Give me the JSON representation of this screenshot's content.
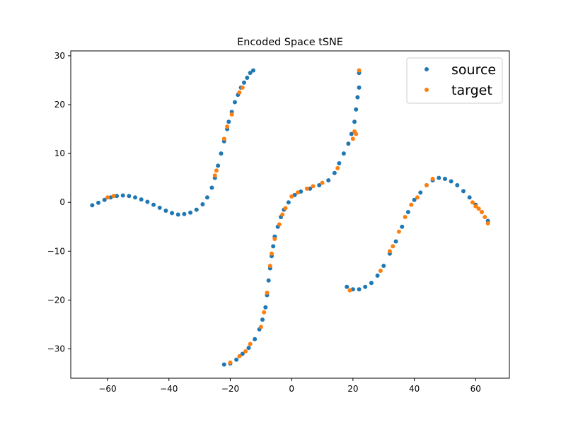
{
  "chart_data": {
    "type": "scatter",
    "title": "Encoded Space tSNE",
    "xlabel": "",
    "ylabel": "",
    "xlim": [
      -72,
      71
    ],
    "ylim": [
      -36,
      31
    ],
    "xticks": [
      -60,
      -40,
      -20,
      0,
      20,
      40,
      60
    ],
    "yticks": [
      -30,
      -20,
      -10,
      0,
      10,
      20,
      30
    ],
    "xtick_labels": [
      "−60",
      "−40",
      "−20",
      "0",
      "20",
      "40",
      "60"
    ],
    "ytick_labels": [
      "−30",
      "−20",
      "−10",
      "0",
      "10",
      "20",
      "30"
    ],
    "grid": false,
    "legend_position": "upper right",
    "series": [
      {
        "name": "source",
        "color": "#1f77b4",
        "clusters": [
          {
            "segment": "left",
            "points": [
              [
                -65,
                -0.6
              ],
              [
                -63,
                -0.1
              ],
              [
                -61,
                0.5
              ],
              [
                -59,
                1.0
              ],
              [
                -57,
                1.3
              ],
              [
                -55,
                1.4
              ],
              [
                -53,
                1.3
              ],
              [
                -51,
                1.0
              ],
              [
                -49,
                0.6
              ],
              [
                -47,
                0.1
              ],
              [
                -45,
                -0.5
              ],
              [
                -43,
                -1.1
              ],
              [
                -41,
                -1.7
              ],
              [
                -39,
                -2.2
              ],
              [
                -37,
                -2.5
              ],
              [
                -35,
                -2.4
              ],
              [
                -33,
                -2.1
              ],
              [
                -31,
                -1.5
              ],
              [
                -29,
                -0.4
              ],
              [
                -27.5,
                1.0
              ],
              [
                -26,
                3.0
              ],
              [
                -25,
                5.0
              ],
              [
                -24,
                7.5
              ],
              [
                -23,
                10.0
              ],
              [
                -22,
                12.5
              ],
              [
                -21,
                15.0
              ],
              [
                -20.5,
                16.5
              ],
              [
                -19.5,
                18.5
              ],
              [
                -18.5,
                20.5
              ],
              [
                -17.5,
                22.0
              ],
              [
                -16.5,
                23.5
              ],
              [
                -15.5,
                24.5
              ],
              [
                -14.5,
                25.5
              ],
              [
                -13.5,
                26.5
              ],
              [
                -12.5,
                27.0
              ]
            ]
          },
          {
            "segment": "center",
            "points": [
              [
                -22,
                -33.2
              ],
              [
                -20,
                -33.0
              ],
              [
                -18,
                -32.2
              ],
              [
                -16,
                -31.0
              ],
              [
                -14,
                -29.8
              ],
              [
                -12,
                -28.0
              ],
              [
                -10.5,
                -26.0
              ],
              [
                -9.5,
                -24.0
              ],
              [
                -8.5,
                -21.5
              ],
              [
                -8,
                -19.0
              ],
              [
                -7.5,
                -16.0
              ],
              [
                -7,
                -13.5
              ],
              [
                -6.5,
                -11.0
              ],
              [
                -6,
                -9.0
              ],
              [
                -5.5,
                -7.0
              ],
              [
                -4.5,
                -5.0
              ],
              [
                -3.5,
                -3.0
              ],
              [
                -2.5,
                -1.5
              ],
              [
                -1,
                0.0
              ],
              [
                1,
                1.5
              ],
              [
                3,
                2.2
              ],
              [
                6,
                2.8
              ],
              [
                9,
                3.5
              ],
              [
                12,
                4.5
              ],
              [
                14,
                6.0
              ],
              [
                15.5,
                8.0
              ],
              [
                17,
                10.0
              ],
              [
                18.5,
                12.0
              ],
              [
                19.5,
                14.0
              ],
              [
                20.5,
                16.5
              ],
              [
                21,
                19.0
              ],
              [
                21.5,
                21.5
              ],
              [
                22,
                23.5
              ],
              [
                22,
                26.5
              ]
            ]
          },
          {
            "segment": "right",
            "points": [
              [
                18,
                -17.3
              ],
              [
                20,
                -17.8
              ],
              [
                22,
                -17.8
              ],
              [
                24,
                -17.3
              ],
              [
                26,
                -16.5
              ],
              [
                28,
                -15.0
              ],
              [
                30,
                -13.0
              ],
              [
                32,
                -10.5
              ],
              [
                34,
                -8.0
              ],
              [
                36,
                -5.0
              ],
              [
                38,
                -2.0
              ],
              [
                40,
                0.5
              ],
              [
                42,
                2.0
              ],
              [
                44,
                3.5
              ],
              [
                46,
                4.5
              ],
              [
                48,
                5.0
              ],
              [
                50,
                4.8
              ],
              [
                52,
                4.3
              ],
              [
                54,
                3.5
              ],
              [
                56,
                2.3
              ],
              [
                58,
                1.0
              ],
              [
                60,
                -0.5
              ],
              [
                62,
                -2.0
              ],
              [
                64,
                -3.8
              ]
            ]
          }
        ]
      },
      {
        "name": "target",
        "color": "#ff7f0e",
        "clusters": [
          {
            "segment": "left",
            "points": [
              [
                -60,
                1.0
              ],
              [
                -58,
                1.3
              ],
              [
                -25,
                5.5
              ],
              [
                -24.5,
                6.5
              ],
              [
                -22,
                13.0
              ],
              [
                -21,
                15.5
              ],
              [
                -19.5,
                18.0
              ],
              [
                -17,
                22.5
              ],
              [
                -16,
                23.5
              ]
            ]
          },
          {
            "segment": "center",
            "points": [
              [
                -20,
                -32.8
              ],
              [
                -17,
                -31.5
              ],
              [
                -15,
                -30.5
              ],
              [
                -13.5,
                -29.0
              ],
              [
                -10,
                -25.5
              ],
              [
                -9,
                -22.5
              ],
              [
                -8,
                -18.5
              ],
              [
                -7,
                -13.0
              ],
              [
                -6.5,
                -10.5
              ],
              [
                -5.5,
                -7.5
              ],
              [
                -4,
                -4.5
              ],
              [
                -3,
                -2.5
              ],
              [
                -2,
                -1.2
              ],
              [
                0,
                1.2
              ],
              [
                2,
                2.0
              ],
              [
                5,
                2.8
              ],
              [
                7,
                3.3
              ],
              [
                10,
                4.0
              ],
              [
                15,
                7.0
              ],
              [
                20,
                13.0
              ],
              [
                20.5,
                14.5
              ],
              [
                21,
                14.0
              ],
              [
                22,
                27.0
              ]
            ]
          },
          {
            "segment": "right",
            "points": [
              [
                19,
                -18.0
              ],
              [
                29,
                -14.0
              ],
              [
                32,
                -10.0
              ],
              [
                33,
                -9.0
              ],
              [
                35,
                -6.0
              ],
              [
                37,
                -3.0
              ],
              [
                39,
                -0.5
              ],
              [
                41,
                1.0
              ],
              [
                44,
                3.5
              ],
              [
                46,
                4.8
              ],
              [
                59,
                0.0
              ],
              [
                60,
                -0.8
              ],
              [
                61,
                -1.3
              ],
              [
                62,
                -2.0
              ],
              [
                63,
                -3.0
              ],
              [
                64,
                -4.3
              ]
            ]
          }
        ]
      }
    ]
  }
}
